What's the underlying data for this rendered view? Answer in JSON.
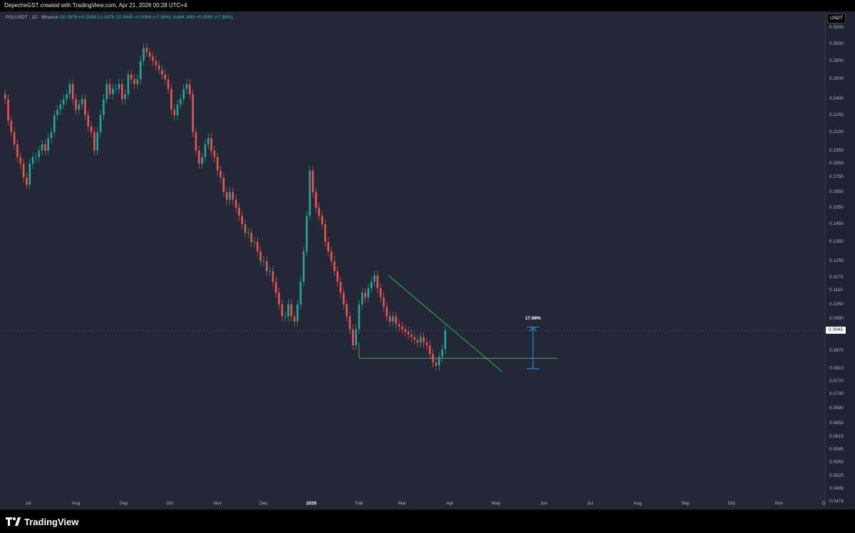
{
  "header": {
    "credit": "DepecheGST created with TradingView.com, Apr 21, 2026 00:28 UTC+4"
  },
  "legend": {
    "symbol": "POLUSDT · 1D · Binance",
    "open": "O0.0876",
    "high": "H0.0958",
    "low": "L0.0875",
    "close": "C0.0945",
    "change": "+0.0069 (+7.88%)",
    "volume": "Vol64.34M",
    "volume_change": "+0.0069 (+7.88%)"
  },
  "price_axis": {
    "currency": "USDT",
    "current_price": "0.0945",
    "ticks": [
      "0.3200",
      "0.3000",
      "0.2800",
      "0.2600",
      "0.2400",
      "0.2250",
      "0.2100",
      "0.1950",
      "0.1850",
      "0.1750",
      "0.1650",
      "0.1550",
      "0.1450",
      "0.1350",
      "0.1250",
      "0.1170",
      "0.1110",
      "0.1050",
      "0.0990",
      "0.0870",
      "0.0810",
      "0.0770",
      "0.0730",
      "0.0690",
      "0.0650",
      "0.0615",
      "0.0585",
      "0.0555",
      "0.0525",
      "0.0499",
      "0.0474"
    ]
  },
  "time_axis": {
    "ticks": [
      "Jul",
      "Aug",
      "Sep",
      "Oct",
      "Nov",
      "Dec",
      "2026",
      "Feb",
      "Mar",
      "Apr",
      "May",
      "Jun",
      "Jul",
      "Aug",
      "Sep",
      "Oct",
      "Nov",
      "D"
    ]
  },
  "annotation": {
    "percent_label": "17.98%"
  },
  "footer": {
    "brand": "TradingView"
  },
  "colors": {
    "up": "#26a69a",
    "down": "#ef5350",
    "pattern": "#2db84d",
    "measure": "#2f7fe0",
    "background": "#232837"
  },
  "chart_data": {
    "type": "candlestick",
    "symbol": "POLUSDT",
    "interval": "1D",
    "scale": "log",
    "x_start": "2025-06-15",
    "x_step": "1 day",
    "pattern": "descending triangle: support ~0.0845 from Feb 2026 to Jun 2026, resistance from 0.1180 (late Feb 2026) down to 0.0800 (early May 2026)",
    "measure": {
      "label": "17.98%",
      "from_price": 0.081,
      "to_price": 0.0958,
      "date": "2026-05-25"
    },
    "closes": [
      0.24,
      0.22,
      0.21,
      0.2,
      0.19,
      0.185,
      0.175,
      0.17,
      0.185,
      0.19,
      0.19,
      0.195,
      0.2,
      0.195,
      0.205,
      0.21,
      0.225,
      0.23,
      0.235,
      0.24,
      0.245,
      0.255,
      0.24,
      0.23,
      0.235,
      0.24,
      0.225,
      0.215,
      0.21,
      0.195,
      0.21,
      0.225,
      0.24,
      0.255,
      0.245,
      0.25,
      0.25,
      0.255,
      0.24,
      0.245,
      0.265,
      0.26,
      0.255,
      0.26,
      0.28,
      0.295,
      0.29,
      0.285,
      0.28,
      0.275,
      0.27,
      0.265,
      0.26,
      0.25,
      0.23,
      0.225,
      0.235,
      0.24,
      0.25,
      0.255,
      0.245,
      0.21,
      0.195,
      0.185,
      0.19,
      0.2,
      0.205,
      0.195,
      0.19,
      0.18,
      0.175,
      0.165,
      0.16,
      0.165,
      0.16,
      0.155,
      0.15,
      0.145,
      0.14,
      0.14,
      0.135,
      0.135,
      0.13,
      0.125,
      0.125,
      0.12,
      0.12,
      0.115,
      0.11,
      0.105,
      0.1,
      0.1,
      0.105,
      0.1,
      0.098,
      0.105,
      0.115,
      0.13,
      0.15,
      0.18,
      0.165,
      0.155,
      0.15,
      0.145,
      0.135,
      0.13,
      0.125,
      0.12,
      0.115,
      0.11,
      0.105,
      0.1,
      0.095,
      0.089,
      0.095,
      0.105,
      0.11,
      0.108,
      0.112,
      0.115,
      0.118,
      0.112,
      0.108,
      0.104,
      0.1,
      0.098,
      0.1,
      0.097,
      0.096,
      0.095,
      0.094,
      0.093,
      0.092,
      0.091,
      0.09,
      0.092,
      0.09,
      0.089,
      0.086,
      0.083,
      0.082,
      0.085,
      0.0876,
      0.0945
    ]
  }
}
